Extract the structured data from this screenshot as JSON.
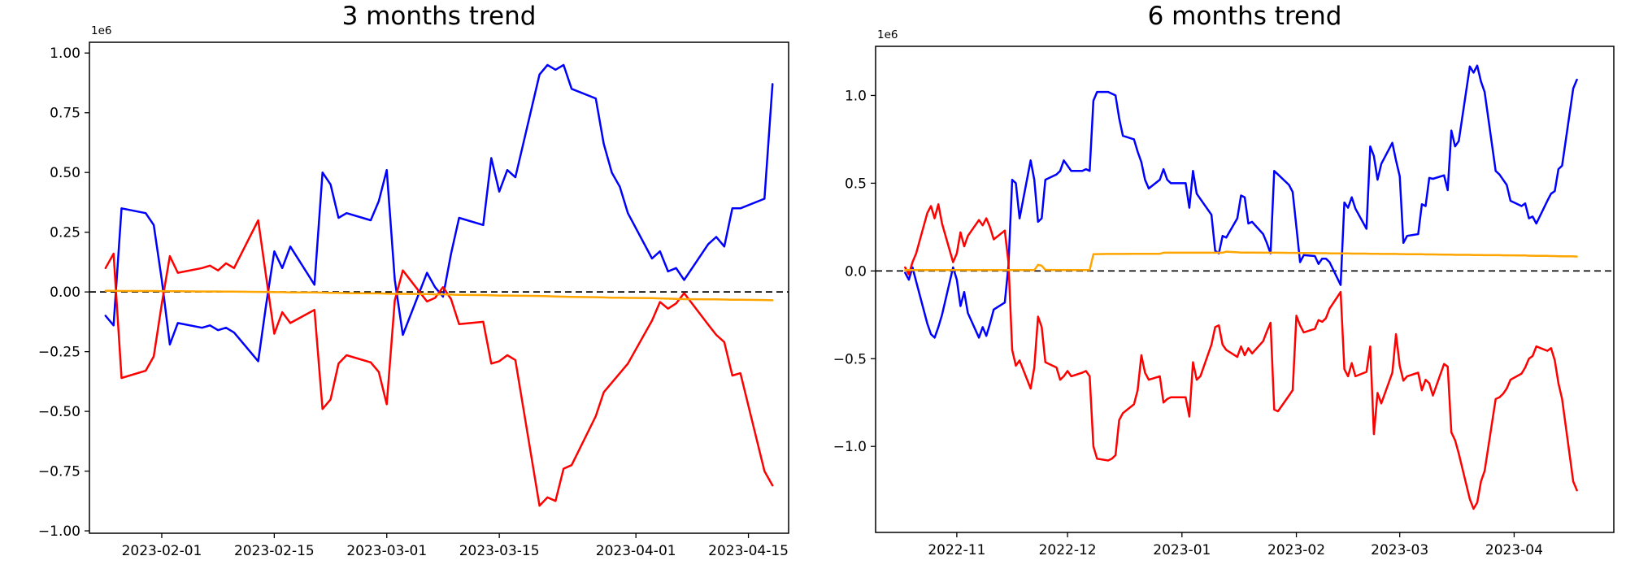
{
  "figure": {
    "background": "#ffffff"
  },
  "chart_data": [
    {
      "type": "line",
      "title": "3 months trend",
      "offset_label": "1e6",
      "grid": false,
      "legend": null,
      "unit_multiplier": 1000000,
      "xlim": [
        "2023-01-23",
        "2023-04-20"
      ],
      "ylim": [
        -1010000,
        1045000
      ],
      "zero_line": {
        "value": 0,
        "style": "dashed",
        "color": "#000000"
      },
      "x_ticks": [
        {
          "date": "2023-02-01",
          "label": "2023-02-01"
        },
        {
          "date": "2023-02-15",
          "label": "2023-02-15"
        },
        {
          "date": "2023-03-01",
          "label": "2023-03-01"
        },
        {
          "date": "2023-03-15",
          "label": "2023-03-15"
        },
        {
          "date": "2023-04-01",
          "label": "2023-04-01"
        },
        {
          "date": "2023-04-15",
          "label": "2023-04-15"
        }
      ],
      "y_ticks": [
        {
          "value": 1000000,
          "label": "1.00"
        },
        {
          "value": 750000,
          "label": "0.75"
        },
        {
          "value": 500000,
          "label": "0.50"
        },
        {
          "value": 250000,
          "label": "0.25"
        },
        {
          "value": 0,
          "label": "0.00"
        },
        {
          "value": -250000,
          "label": "−0.25"
        },
        {
          "value": -500000,
          "label": "−0.50"
        },
        {
          "value": -750000,
          "label": "−0.75"
        },
        {
          "value": -1000000,
          "label": "−1.00"
        }
      ],
      "x": [
        "2023-01-25",
        "2023-01-26",
        "2023-01-27",
        "2023-01-30",
        "2023-01-31",
        "2023-02-01",
        "2023-02-02",
        "2023-02-03",
        "2023-02-06",
        "2023-02-07",
        "2023-02-08",
        "2023-02-09",
        "2023-02-10",
        "2023-02-13",
        "2023-02-14",
        "2023-02-15",
        "2023-02-16",
        "2023-02-17",
        "2023-02-20",
        "2023-02-21",
        "2023-02-22",
        "2023-02-23",
        "2023-02-24",
        "2023-02-27",
        "2023-02-28",
        "2023-03-01",
        "2023-03-02",
        "2023-03-03",
        "2023-03-06",
        "2023-03-07",
        "2023-03-08",
        "2023-03-09",
        "2023-03-10",
        "2023-03-13",
        "2023-03-14",
        "2023-03-15",
        "2023-03-16",
        "2023-03-17",
        "2023-03-20",
        "2023-03-21",
        "2023-03-22",
        "2023-03-23",
        "2023-03-24",
        "2023-03-27",
        "2023-03-28",
        "2023-03-29",
        "2023-03-30",
        "2023-03-31",
        "2023-04-03",
        "2023-04-04",
        "2023-04-05",
        "2023-04-06",
        "2023-04-07",
        "2023-04-10",
        "2023-04-11",
        "2023-04-12",
        "2023-04-13",
        "2023-04-14",
        "2023-04-17",
        "2023-04-18"
      ],
      "series": [
        {
          "name": "blue",
          "color": "#0000ff",
          "values_millions": [
            -0.1,
            -0.14,
            0.35,
            0.33,
            0.28,
            0.05,
            -0.22,
            -0.13,
            -0.15,
            -0.14,
            -0.16,
            -0.15,
            -0.17,
            -0.29,
            -0.05,
            0.17,
            0.1,
            0.19,
            0.03,
            0.5,
            0.45,
            0.31,
            0.33,
            0.3,
            0.38,
            0.51,
            0.05,
            -0.18,
            0.08,
            0.02,
            -0.02,
            0.16,
            0.31,
            0.28,
            0.56,
            0.42,
            0.51,
            0.48,
            0.91,
            0.95,
            0.93,
            0.95,
            0.85,
            0.81,
            0.62,
            0.5,
            0.44,
            0.33,
            0.14,
            0.17,
            0.086,
            0.1,
            0.05,
            0.2,
            0.23,
            0.19,
            0.35,
            0.35,
            0.39,
            0.87
          ]
        },
        {
          "name": "red",
          "color": "#ff0000",
          "values_millions": [
            0.1,
            0.16,
            -0.36,
            -0.33,
            -0.27,
            -0.05,
            0.15,
            0.08,
            0.1,
            0.11,
            0.09,
            0.12,
            0.1,
            0.3,
            0.06,
            -0.175,
            -0.085,
            -0.13,
            -0.075,
            -0.49,
            -0.45,
            -0.3,
            -0.265,
            -0.295,
            -0.335,
            -0.47,
            -0.035,
            0.09,
            -0.04,
            -0.025,
            0.02,
            -0.03,
            -0.135,
            -0.125,
            -0.3,
            -0.29,
            -0.265,
            -0.285,
            -0.895,
            -0.86,
            -0.875,
            -0.74,
            -0.725,
            -0.52,
            -0.42,
            -0.38,
            -0.34,
            -0.3,
            -0.12,
            -0.042,
            -0.07,
            -0.048,
            -0.005,
            -0.137,
            -0.18,
            -0.21,
            -0.35,
            -0.34,
            -0.75,
            -0.81
          ]
        },
        {
          "name": "orange",
          "color": "#ffa500",
          "values_millions": [
            0.005,
            0.005,
            0.004,
            0.004,
            0.004,
            0.003,
            0.003,
            0.003,
            0.002,
            0.002,
            0.002,
            0.001,
            0.001,
            0.0,
            0.0,
            -0.001,
            -0.001,
            -0.002,
            -0.002,
            -0.003,
            -0.004,
            -0.004,
            -0.005,
            -0.006,
            -0.006,
            -0.007,
            -0.008,
            -0.008,
            -0.009,
            -0.01,
            -0.01,
            -0.011,
            -0.012,
            -0.013,
            -0.014,
            -0.015,
            -0.015,
            -0.016,
            -0.017,
            -0.018,
            -0.019,
            -0.02,
            -0.021,
            -0.022,
            -0.023,
            -0.024,
            -0.024,
            -0.025,
            -0.026,
            -0.027,
            -0.028,
            -0.029,
            -0.03,
            -0.031,
            -0.031,
            -0.032,
            -0.033,
            -0.033,
            -0.034,
            -0.035
          ]
        }
      ]
    },
    {
      "type": "line",
      "title": "6 months trend",
      "offset_label": "1e6",
      "grid": false,
      "legend": null,
      "unit_multiplier": 1000000,
      "xlim": [
        "2022-10-10",
        "2023-04-28"
      ],
      "ylim": [
        -1490000,
        1280000
      ],
      "zero_line": {
        "value": 0,
        "style": "dashed",
        "color": "#000000"
      },
      "x_ticks": [
        {
          "date": "2022-11-01",
          "label": "2022-11"
        },
        {
          "date": "2022-12-01",
          "label": "2022-12"
        },
        {
          "date": "2023-01-01",
          "label": "2023-01"
        },
        {
          "date": "2023-02-01",
          "label": "2023-02"
        },
        {
          "date": "2023-03-01",
          "label": "2023-03"
        },
        {
          "date": "2023-04-01",
          "label": "2023-04"
        }
      ],
      "y_ticks": [
        {
          "value": 1000000,
          "label": "1.0"
        },
        {
          "value": 500000,
          "label": "0.5"
        },
        {
          "value": 0,
          "label": "0.0"
        },
        {
          "value": -500000,
          "label": "−0.5"
        },
        {
          "value": -1000000,
          "label": "−1.0"
        }
      ],
      "x": [
        "2022-10-18",
        "2022-10-19",
        "2022-10-20",
        "2022-10-21",
        "2022-10-24",
        "2022-10-25",
        "2022-10-26",
        "2022-10-27",
        "2022-10-28",
        "2022-10-31",
        "2022-11-01",
        "2022-11-02",
        "2022-11-03",
        "2022-11-04",
        "2022-11-07",
        "2022-11-08",
        "2022-11-09",
        "2022-11-10",
        "2022-11-11",
        "2022-11-14",
        "2022-11-15",
        "2022-11-16",
        "2022-11-17",
        "2022-11-18",
        "2022-11-21",
        "2022-11-22",
        "2022-11-23",
        "2022-11-24",
        "2022-11-25",
        "2022-11-28",
        "2022-11-29",
        "2022-11-30",
        "2022-12-01",
        "2022-12-02",
        "2022-12-05",
        "2022-12-06",
        "2022-12-07",
        "2022-12-08",
        "2022-12-09",
        "2022-12-12",
        "2022-12-13",
        "2022-12-14",
        "2022-12-15",
        "2022-12-16",
        "2022-12-19",
        "2022-12-20",
        "2022-12-21",
        "2022-12-22",
        "2022-12-23",
        "2022-12-26",
        "2022-12-27",
        "2022-12-28",
        "2022-12-29",
        "2022-12-30",
        "2023-01-02",
        "2023-01-03",
        "2023-01-04",
        "2023-01-05",
        "2023-01-06",
        "2023-01-09",
        "2023-01-10",
        "2023-01-11",
        "2023-01-12",
        "2023-01-13",
        "2023-01-16",
        "2023-01-17",
        "2023-01-18",
        "2023-01-19",
        "2023-01-20",
        "2023-01-23",
        "2023-01-24",
        "2023-01-25",
        "2023-01-26",
        "2023-01-27",
        "2023-01-30",
        "2023-01-31",
        "2023-02-01",
        "2023-02-02",
        "2023-02-03",
        "2023-02-06",
        "2023-02-07",
        "2023-02-08",
        "2023-02-09",
        "2023-02-10",
        "2023-02-13",
        "2023-02-14",
        "2023-02-15",
        "2023-02-16",
        "2023-02-17",
        "2023-02-20",
        "2023-02-21",
        "2023-02-22",
        "2023-02-23",
        "2023-02-24",
        "2023-02-27",
        "2023-02-28",
        "2023-03-01",
        "2023-03-02",
        "2023-03-03",
        "2023-03-06",
        "2023-03-07",
        "2023-03-08",
        "2023-03-09",
        "2023-03-10",
        "2023-03-13",
        "2023-03-14",
        "2023-03-15",
        "2023-03-16",
        "2023-03-17",
        "2023-03-20",
        "2023-03-21",
        "2023-03-22",
        "2023-03-23",
        "2023-03-24",
        "2023-03-27",
        "2023-03-28",
        "2023-03-29",
        "2023-03-30",
        "2023-03-31",
        "2023-04-03",
        "2023-04-04",
        "2023-04-05",
        "2023-04-06",
        "2023-04-07",
        "2023-04-10",
        "2023-04-11",
        "2023-04-12",
        "2023-04-13",
        "2023-04-14",
        "2023-04-17",
        "2023-04-18"
      ],
      "series": [
        {
          "name": "blue",
          "color": "#0000ff",
          "values_millions": [
            -0.01,
            -0.05,
            0.02,
            -0.06,
            -0.3,
            -0.36,
            -0.38,
            -0.32,
            -0.25,
            0.02,
            -0.05,
            -0.2,
            -0.12,
            -0.24,
            -0.38,
            -0.32,
            -0.37,
            -0.3,
            -0.22,
            -0.18,
            0.03,
            0.52,
            0.5,
            0.3,
            0.63,
            0.52,
            0.28,
            0.3,
            0.52,
            0.55,
            0.57,
            0.63,
            0.6,
            0.57,
            0.57,
            0.58,
            0.57,
            0.97,
            1.02,
            1.02,
            1.01,
            1.0,
            0.87,
            0.77,
            0.75,
            0.68,
            0.62,
            0.52,
            0.47,
            0.52,
            0.58,
            0.52,
            0.5,
            0.5,
            0.5,
            0.36,
            0.57,
            0.44,
            0.41,
            0.32,
            0.115,
            0.1,
            0.2,
            0.19,
            0.3,
            0.43,
            0.42,
            0.27,
            0.28,
            0.21,
            0.16,
            0.1,
            0.57,
            0.55,
            0.49,
            0.45,
            0.25,
            0.05,
            0.09,
            0.085,
            0.04,
            0.07,
            0.07,
            0.05,
            -0.08,
            0.39,
            0.36,
            0.42,
            0.355,
            0.24,
            0.71,
            0.655,
            0.52,
            0.61,
            0.73,
            0.63,
            0.54,
            0.16,
            0.2,
            0.21,
            0.38,
            0.37,
            0.53,
            0.525,
            0.545,
            0.46,
            0.8,
            0.71,
            0.74,
            1.165,
            1.13,
            1.17,
            1.08,
            1.02,
            0.57,
            0.55,
            0.52,
            0.49,
            0.4,
            0.37,
            0.385,
            0.3,
            0.31,
            0.27,
            0.4,
            0.44,
            0.455,
            0.58,
            0.6,
            1.04,
            1.09
          ]
        },
        {
          "name": "red",
          "color": "#ff0000",
          "values_millions": [
            0.02,
            -0.02,
            0.05,
            0.1,
            0.33,
            0.37,
            0.3,
            0.38,
            0.27,
            0.05,
            0.1,
            0.22,
            0.14,
            0.2,
            0.29,
            0.26,
            0.3,
            0.25,
            0.18,
            0.23,
            0.05,
            -0.45,
            -0.54,
            -0.51,
            -0.67,
            -0.55,
            -0.26,
            -0.32,
            -0.52,
            -0.55,
            -0.62,
            -0.6,
            -0.57,
            -0.6,
            -0.58,
            -0.57,
            -0.6,
            -1.0,
            -1.07,
            -1.08,
            -1.07,
            -1.05,
            -0.85,
            -0.81,
            -0.76,
            -0.68,
            -0.48,
            -0.58,
            -0.62,
            -0.6,
            -0.75,
            -0.73,
            -0.72,
            -0.72,
            -0.72,
            -0.83,
            -0.52,
            -0.62,
            -0.6,
            -0.42,
            -0.32,
            -0.31,
            -0.42,
            -0.45,
            -0.49,
            -0.43,
            -0.48,
            -0.44,
            -0.47,
            -0.4,
            -0.345,
            -0.295,
            -0.79,
            -0.8,
            -0.71,
            -0.68,
            -0.255,
            -0.31,
            -0.35,
            -0.33,
            -0.28,
            -0.29,
            -0.27,
            -0.215,
            -0.12,
            -0.56,
            -0.6,
            -0.525,
            -0.6,
            -0.575,
            -0.43,
            -0.93,
            -0.695,
            -0.755,
            -0.58,
            -0.36,
            -0.54,
            -0.625,
            -0.6,
            -0.58,
            -0.68,
            -0.62,
            -0.64,
            -0.71,
            -0.53,
            -0.545,
            -0.92,
            -0.965,
            -1.04,
            -1.3,
            -1.355,
            -1.32,
            -1.2,
            -1.14,
            -0.73,
            -0.72,
            -0.7,
            -0.67,
            -0.62,
            -0.585,
            -0.55,
            -0.5,
            -0.485,
            -0.43,
            -0.455,
            -0.44,
            -0.51,
            -0.64,
            -0.73,
            -1.2,
            -1.25
          ]
        },
        {
          "name": "orange",
          "color": "#ffa500",
          "values_millions": [
            0.005,
            0.005,
            0.005,
            0.005,
            0.005,
            0.005,
            0.005,
            0.005,
            0.005,
            0.005,
            0.005,
            0.005,
            0.005,
            0.005,
            0.005,
            0.005,
            0.005,
            0.005,
            0.005,
            0.005,
            0.005,
            0.005,
            0.005,
            0.005,
            0.005,
            0.005,
            0.035,
            0.03,
            0.006,
            0.005,
            0.005,
            0.005,
            0.005,
            0.005,
            0.005,
            0.005,
            0.005,
            0.095,
            0.096,
            0.097,
            0.097,
            0.097,
            0.097,
            0.097,
            0.098,
            0.098,
            0.098,
            0.098,
            0.098,
            0.098,
            0.104,
            0.104,
            0.104,
            0.104,
            0.104,
            0.104,
            0.104,
            0.104,
            0.104,
            0.104,
            0.104,
            0.104,
            0.104,
            0.11,
            0.106,
            0.105,
            0.105,
            0.105,
            0.105,
            0.104,
            0.104,
            0.104,
            0.104,
            0.104,
            0.103,
            0.103,
            0.103,
            0.102,
            0.102,
            0.102,
            0.101,
            0.101,
            0.101,
            0.1,
            0.1,
            0.1,
            0.1,
            0.099,
            0.099,
            0.099,
            0.098,
            0.098,
            0.098,
            0.097,
            0.097,
            0.097,
            0.096,
            0.096,
            0.095,
            0.095,
            0.095,
            0.094,
            0.094,
            0.094,
            0.093,
            0.093,
            0.093,
            0.092,
            0.092,
            0.092,
            0.091,
            0.091,
            0.091,
            0.09,
            0.09,
            0.09,
            0.089,
            0.089,
            0.089,
            0.088,
            0.088,
            0.087,
            0.087,
            0.086,
            0.086,
            0.085,
            0.085,
            0.084,
            0.084,
            0.083,
            0.082
          ]
        }
      ]
    }
  ]
}
